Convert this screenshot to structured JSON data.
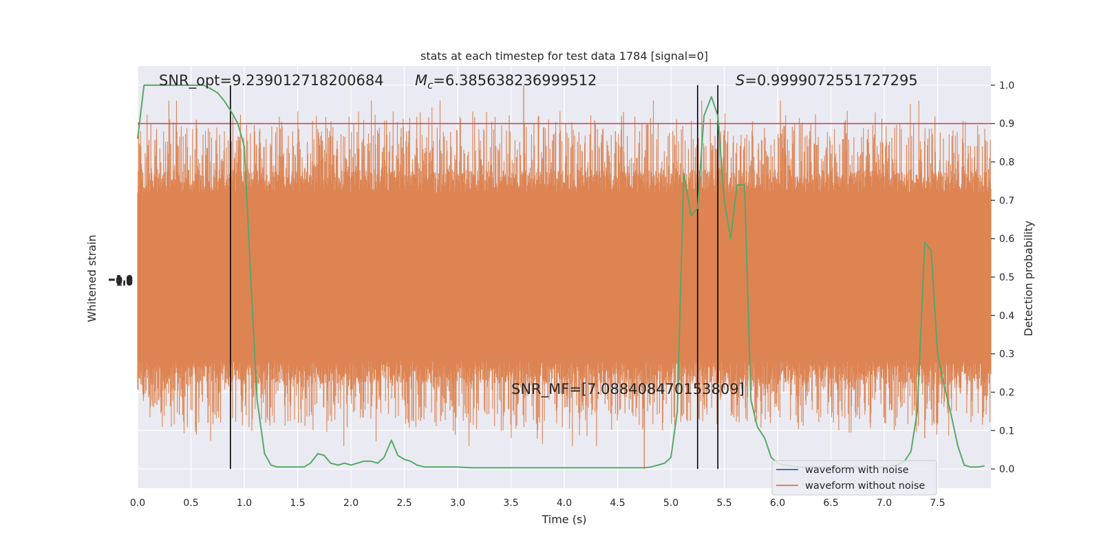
{
  "chart_data": {
    "type": "line",
    "title": "stats at each timestep for test data 1784 [signal=0]",
    "xlabel": "Time (s)",
    "ylabel_left": "Whitened strain",
    "ylabel_right": "Detection probability",
    "xlim": [
      0,
      8
    ],
    "ylim_right": [
      -0.05,
      1.05
    ],
    "grid": true,
    "legend_placement": "lower-right",
    "x_ticks": [
      "0.0",
      "0.5",
      "1.0",
      "1.5",
      "2.0",
      "2.5",
      "3.0",
      "3.5",
      "4.0",
      "4.5",
      "5.0",
      "5.5",
      "6.0",
      "6.5",
      "7.0",
      "7.5"
    ],
    "y_ticks_right": [
      "0.0",
      "0.1",
      "0.2",
      "0.3",
      "0.4",
      "0.5",
      "0.6",
      "0.7",
      "0.8",
      "0.9",
      "1.0"
    ],
    "left_tick_labels": [
      "−1.0",
      "−0.5",
      "0.0",
      "0.5",
      "1.0"
    ],
    "annotations": {
      "snr_opt": "SNR_opt=9.239012718200684",
      "mc_symbol": "M",
      "mc_sub": "c",
      "mc_value": "=6.385638236999512",
      "s_symbol": "S",
      "s_value": "=0.9999072551727295",
      "snr_mf": "SNR_MF=[7.088408470153809]"
    },
    "threshold": {
      "y": 0.9,
      "color": "#c44e52"
    },
    "vertical_lines": [
      0.87,
      5.25,
      5.44
    ],
    "series": [
      {
        "name": "waveform with noise",
        "color": "#4c72b0"
      },
      {
        "name": "waveform without noise",
        "color": "#dd8452",
        "band": {
          "core_low": 0.3,
          "core_high": 0.7,
          "spike_max": 1.0,
          "spike_min": 0.0
        }
      },
      {
        "color": "#55a868",
        "x": [
          0.0,
          0.06,
          0.13,
          0.19,
          0.25,
          0.31,
          0.38,
          0.44,
          0.5,
          0.56,
          0.62,
          0.69,
          0.75,
          0.81,
          0.88,
          0.94,
          1.0,
          1.06,
          1.12,
          1.19,
          1.25,
          1.31,
          1.38,
          1.44,
          1.5,
          1.56,
          1.62,
          1.69,
          1.75,
          1.81,
          1.88,
          1.94,
          2.0,
          2.06,
          2.12,
          2.19,
          2.25,
          2.31,
          2.38,
          2.44,
          2.5,
          2.56,
          2.62,
          2.69,
          2.75,
          2.81,
          2.88,
          3.0,
          3.12,
          3.25,
          3.38,
          3.5,
          3.75,
          4.0,
          4.25,
          4.5,
          4.75,
          4.81,
          4.88,
          4.94,
          5.0,
          5.06,
          5.12,
          5.19,
          5.25,
          5.31,
          5.38,
          5.44,
          5.5,
          5.56,
          5.62,
          5.69,
          5.75,
          5.81,
          5.88,
          5.94,
          6.0,
          6.06,
          6.12,
          6.19,
          6.25,
          6.5,
          6.75,
          7.0,
          7.12,
          7.19,
          7.25,
          7.31,
          7.38,
          7.44,
          7.5,
          7.56,
          7.62,
          7.69,
          7.75,
          7.81,
          7.88,
          7.94
        ],
        "y": [
          0.86,
          1.0,
          1.0,
          1.0,
          1.0,
          1.0,
          1.0,
          1.0,
          1.0,
          1.0,
          1.0,
          0.99,
          0.98,
          0.96,
          0.93,
          0.9,
          0.84,
          0.5,
          0.18,
          0.04,
          0.01,
          0.005,
          0.005,
          0.005,
          0.005,
          0.005,
          0.015,
          0.04,
          0.035,
          0.015,
          0.01,
          0.015,
          0.01,
          0.015,
          0.02,
          0.02,
          0.015,
          0.03,
          0.075,
          0.035,
          0.025,
          0.02,
          0.01,
          0.005,
          0.005,
          0.005,
          0.005,
          0.005,
          0.003,
          0.003,
          0.003,
          0.003,
          0.003,
          0.003,
          0.003,
          0.003,
          0.003,
          0.005,
          0.01,
          0.015,
          0.03,
          0.15,
          0.77,
          0.66,
          0.68,
          0.92,
          0.97,
          0.92,
          0.7,
          0.6,
          0.74,
          0.74,
          0.18,
          0.11,
          0.08,
          0.03,
          0.015,
          0.01,
          0.008,
          0.005,
          0.005,
          0.005,
          0.005,
          0.005,
          0.01,
          0.02,
          0.045,
          0.15,
          0.59,
          0.57,
          0.3,
          0.22,
          0.15,
          0.06,
          0.01,
          0.005,
          0.005,
          0.008
        ]
      }
    ]
  }
}
